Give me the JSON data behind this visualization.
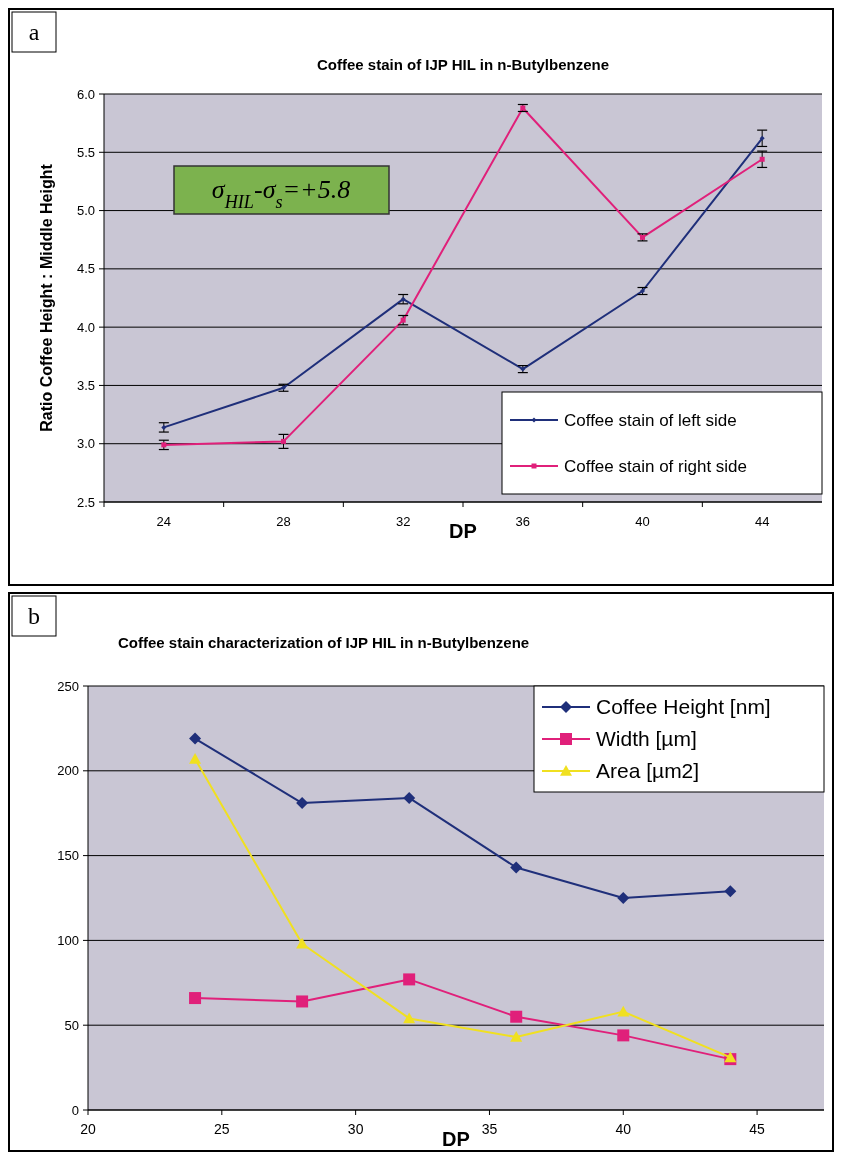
{
  "chart_data": [
    {
      "type": "line",
      "title": "Coffee stain of IJP HIL in n-Butylbenzene",
      "xlabel": "DP",
      "ylabel": "Ratio Coffee Height : Middle Height",
      "annotations": [
        "a",
        "σ$_{HIL}$-σ$_{s}$=+5.8"
      ],
      "categories": [
        "24",
        "28",
        "32",
        "36",
        "40",
        "44"
      ],
      "series": [
        {
          "name": "Coffee stain of left side",
          "color": "#1f2f7a",
          "marker": "diamond",
          "values": [
            3.14,
            3.48,
            4.24,
            3.64,
            4.31,
            5.62
          ],
          "errors": [
            0.04,
            0.03,
            0.04,
            0.03,
            0.03,
            0.07
          ]
        },
        {
          "name": "Coffee stain of right side",
          "color": "#e0207a",
          "marker": "square",
          "values": [
            2.99,
            3.02,
            4.06,
            5.88,
            4.77,
            5.44
          ],
          "errors": [
            0.04,
            0.06,
            0.04,
            0.03,
            0.03,
            0.07
          ]
        }
      ],
      "ylim": [
        2.5,
        6.0
      ],
      "yticks": [
        {
          "value": 2.5,
          "label": "2.5"
        },
        {
          "value": 3,
          "label": "3.0"
        },
        3.5,
        {
          "value": 4,
          "label": "4.0"
        },
        4.5,
        {
          "value": 5,
          "label": "5.0"
        },
        5.5,
        {
          "value": 6,
          "label": "6.0"
        }
      ],
      "grid": "y",
      "legend": "bottom right"
    },
    {
      "type": "line",
      "title": "Coffee stain characterization of IJP HIL in n-Butylbenzene",
      "xlabel": "DP",
      "annotations": [
        "b"
      ],
      "x": [
        24,
        28,
        32,
        36,
        40,
        44
      ],
      "series": [
        {
          "name": "Coffee Height [nm]",
          "color": "#1f2f7a",
          "marker": "diamond",
          "values": [
            219,
            181,
            184,
            143,
            125,
            129
          ]
        },
        {
          "name": "Width [µm]",
          "color": "#e0207a",
          "marker": "square",
          "values": [
            66,
            64,
            77,
            55,
            44,
            30
          ]
        },
        {
          "name": "Area [µm2]",
          "color": "#f0e020",
          "marker": "triangle",
          "values": [
            207,
            98,
            54,
            43,
            58,
            31
          ]
        }
      ],
      "xlim": [
        20,
        47.5
      ],
      "xticks": [
        20,
        25,
        30,
        35,
        40,
        45
      ],
      "ylim": [
        0,
        250
      ],
      "yticks": [
        0,
        50,
        100,
        150,
        200,
        250
      ],
      "grid": "y",
      "legend": "top right"
    }
  ]
}
